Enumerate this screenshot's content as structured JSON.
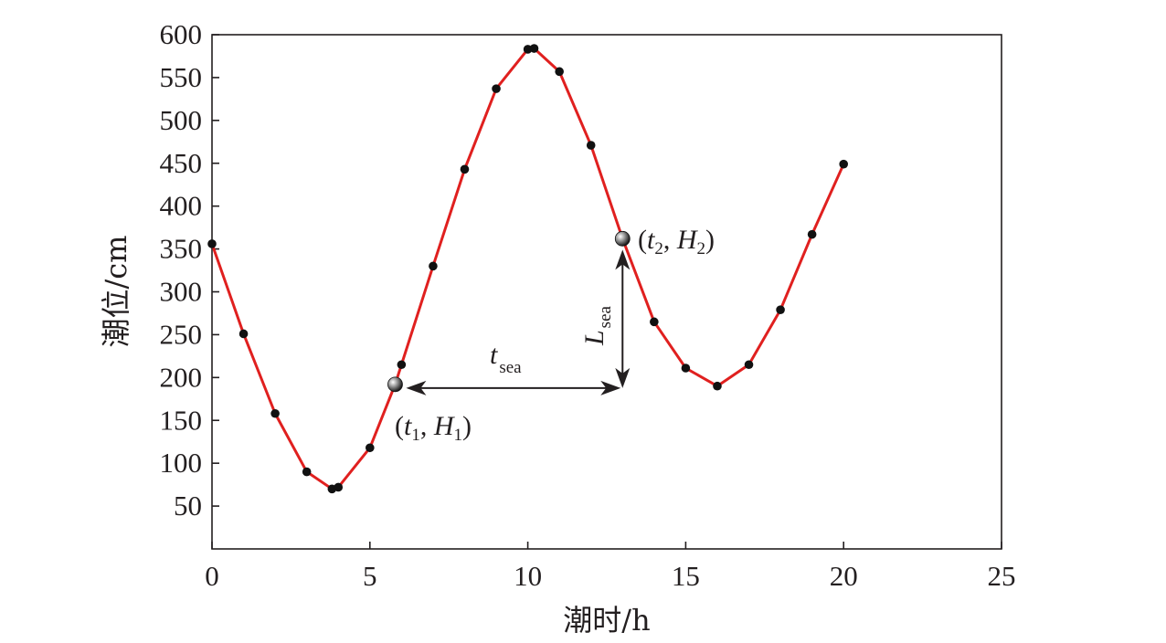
{
  "chart_data": {
    "type": "line",
    "xlabel": "潮时/h",
    "ylabel": "潮位/cm",
    "xlim": [
      0,
      25
    ],
    "ylim": [
      0,
      600
    ],
    "x_ticks": [
      0,
      5,
      10,
      15,
      20,
      25
    ],
    "y_ticks": [
      50,
      100,
      150,
      200,
      250,
      300,
      350,
      400,
      450,
      500,
      550,
      600
    ],
    "grid": false,
    "line_color": "#e0201f",
    "marker_color": "#111111",
    "series": [
      {
        "x": [
          0,
          1,
          2,
          3,
          3.8,
          4,
          5,
          5.8,
          6,
          7,
          8,
          9,
          10,
          10.2,
          11,
          12,
          13,
          14,
          15,
          16,
          17,
          18,
          19,
          20
        ],
        "y": [
          356,
          251,
          158,
          90,
          70,
          72,
          118,
          192,
          215,
          330,
          443,
          537,
          583,
          584,
          557,
          471,
          362,
          265,
          211,
          190,
          215,
          279,
          367,
          449
        ]
      }
    ],
    "annotations": {
      "p1": {
        "x": 5.8,
        "y": 192,
        "label_open": "(",
        "t": "t",
        "t_sub": "1",
        "comma": ", ",
        "h": "H",
        "h_sub": "1",
        "label_close": ")"
      },
      "p2": {
        "x": 13,
        "y": 362,
        "label_open": "(",
        "t": "t",
        "t_sub": "2",
        "comma": ", ",
        "h": "H",
        "h_sub": "2",
        "label_close": ")"
      },
      "t_sea": {
        "main": "t",
        "sub": "sea",
        "y": 192
      },
      "l_sea": {
        "main": "L",
        "sub": "sea",
        "x": 13
      }
    }
  }
}
